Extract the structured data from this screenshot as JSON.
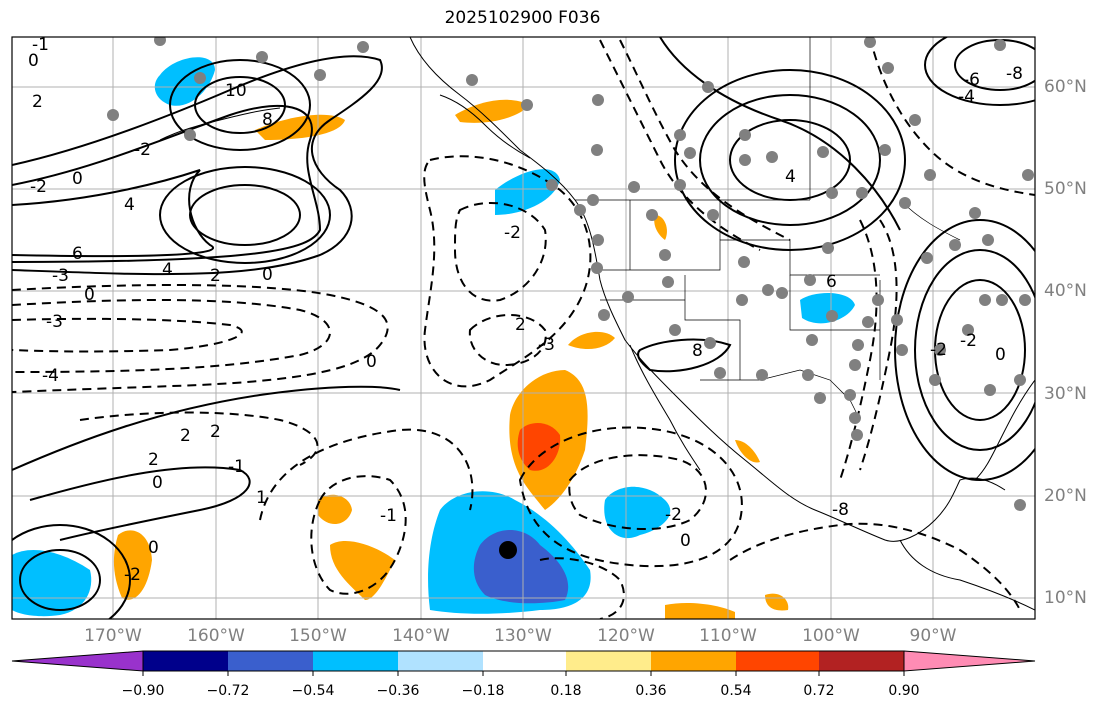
{
  "title": "2025102900 F036",
  "map": {
    "region": "Northeast Pacific and western North America",
    "lon_range_deg": [
      -180,
      -80
    ],
    "lat_range_deg": [
      8,
      65
    ],
    "lat_labels": [
      "60°N",
      "50°N",
      "40°N",
      "30°N",
      "20°N",
      "10°N"
    ],
    "lon_labels": [
      "170°W",
      "160°W",
      "150°W",
      "140°W",
      "130°W",
      "120°W",
      "110°W",
      "100°W",
      "90°W"
    ],
    "contour_labels": [
      "-1",
      "0",
      "10",
      "8",
      "2",
      "4",
      "-2",
      "0",
      "-2",
      "6",
      "-3",
      "4",
      "2",
      "0",
      "0",
      "-3",
      "-4",
      "2",
      "2",
      "2",
      "-1",
      "0",
      "1",
      "0",
      "-2",
      "2",
      "-3",
      "-2",
      "0",
      "-1",
      "-2",
      "0",
      "-8",
      "8",
      "6",
      "4",
      "-8",
      "-6",
      "-4",
      "0",
      "-2",
      "-2"
    ],
    "marker_icon": "black-dot-marker"
  },
  "colorbar": {
    "ticks": [
      "−0.90",
      "−0.72",
      "−0.54",
      "−0.36",
      "−0.18",
      "0.18",
      "0.36",
      "0.54",
      "0.72",
      "0.90"
    ],
    "colors": [
      "#9932cc",
      "#00008b",
      "#3a5fcd",
      "#00bfff",
      "#b0e2ff",
      "#ffffff",
      "#ffec8b",
      "#ffa500",
      "#ff4500",
      "#b22222",
      "#ff8cb4"
    ],
    "extend": "both"
  },
  "colors": {
    "contour": "#000000",
    "grid": "#b0b0b0",
    "station_dot": "#808080"
  }
}
